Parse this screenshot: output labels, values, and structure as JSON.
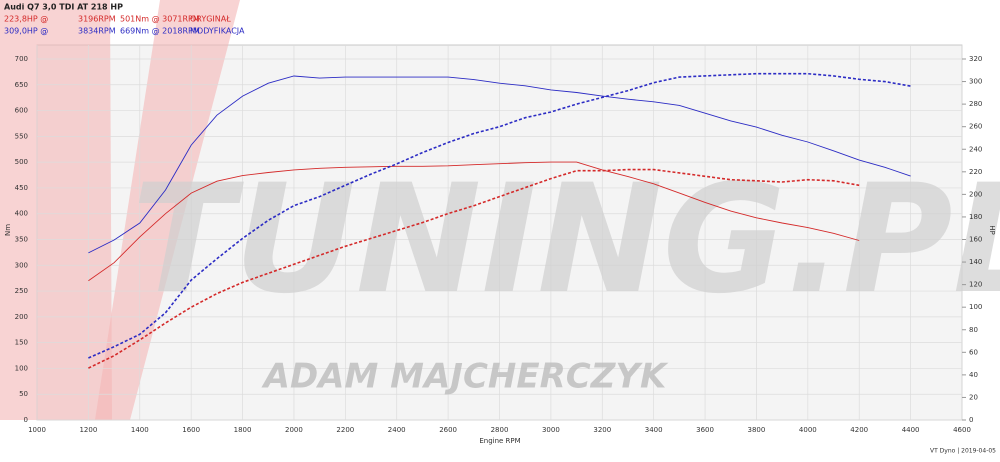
{
  "chart_data": {
    "type": "line",
    "title": "Audi Q7 3,0 TDI AT 218 HP",
    "header_lines": [
      {
        "color": "#d42a2a",
        "texts": [
          "223,8HP @",
          "3196RPM",
          "501Nm @ 3071RPM",
          "ORYGINAŁ"
        ]
      },
      {
        "color": "#2c2cc4",
        "texts": [
          "309,0HP @",
          "3834RPM",
          "669Nm @ 2018RPM",
          "MODYFIKACJA"
        ]
      }
    ],
    "watermark": [
      "TUNING.PL",
      "ADAM MAJCHERCZYK"
    ],
    "footer": "VT Dyno | 2019-04-05",
    "x_label": "Engine RPM",
    "y_label": "Nm",
    "y2_label": "HP",
    "x": [
      1200,
      1300,
      1400,
      1500,
      1600,
      1700,
      1800,
      1900,
      2000,
      2100,
      2200,
      2300,
      2400,
      2500,
      2600,
      2700,
      2800,
      2900,
      3000,
      3100,
      3200,
      3300,
      3400,
      3500,
      3600,
      3700,
      3800,
      3900,
      4000,
      4100,
      4200,
      4300,
      4400
    ],
    "series": [
      {
        "color": "#d42a2a",
        "axis": "y",
        "dashed": false,
        "values": [
          270,
          305,
          355,
          400,
          440,
          463,
          474,
          480,
          485,
          488,
          490,
          491,
          492,
          492,
          493,
          495,
          497,
          499,
          500,
          500,
          485,
          472,
          458,
          440,
          422,
          405,
          392,
          382,
          373,
          362,
          348,
          null,
          null
        ]
      },
      {
        "color": "#d42a2a",
        "axis": "y2",
        "dashed": true,
        "values": [
          46,
          57,
          71,
          86,
          100,
          112,
          122,
          130,
          138,
          146,
          154,
          161,
          168,
          175,
          183,
          190,
          198,
          206,
          214,
          221,
          221,
          222,
          222,
          219,
          216,
          213,
          212,
          211,
          213,
          212,
          208,
          null,
          null
        ]
      },
      {
        "color": "#2c2cc4",
        "axis": "y",
        "dashed": false,
        "values": [
          324,
          349,
          382,
          446,
          533,
          591,
          628,
          653,
          667,
          663,
          665,
          665,
          665,
          665,
          665,
          660,
          653,
          648,
          640,
          635,
          628,
          622,
          617,
          610,
          595,
          580,
          568,
          552,
          539,
          522,
          504,
          490,
          473
        ]
      },
      {
        "color": "#2c2cc4",
        "axis": "y2",
        "dashed": true,
        "values": [
          55,
          65,
          76,
          95,
          124,
          143,
          161,
          177,
          190,
          198,
          208,
          218,
          227,
          237,
          246,
          254,
          260,
          268,
          273,
          280,
          286,
          292,
          299,
          304,
          305,
          306,
          307,
          307,
          307,
          305,
          302,
          300,
          296
        ]
      }
    ],
    "xlim": [
      1000,
      4600
    ],
    "xticks": [
      1000,
      1200,
      1400,
      1600,
      1800,
      2000,
      2200,
      2400,
      2600,
      2800,
      3000,
      3200,
      3400,
      3600,
      3800,
      4000,
      4200,
      4400,
      4600
    ],
    "ylim": [
      0,
      700
    ],
    "yticks": [
      0,
      50,
      100,
      150,
      200,
      250,
      300,
      350,
      400,
      450,
      500,
      550,
      600,
      650,
      700
    ],
    "y2lim": [
      0,
      320
    ],
    "y2ticks": [
      0,
      20,
      40,
      60,
      80,
      100,
      120,
      140,
      160,
      180,
      200,
      220,
      240,
      260,
      280,
      300,
      320
    ],
    "grid": true
  }
}
